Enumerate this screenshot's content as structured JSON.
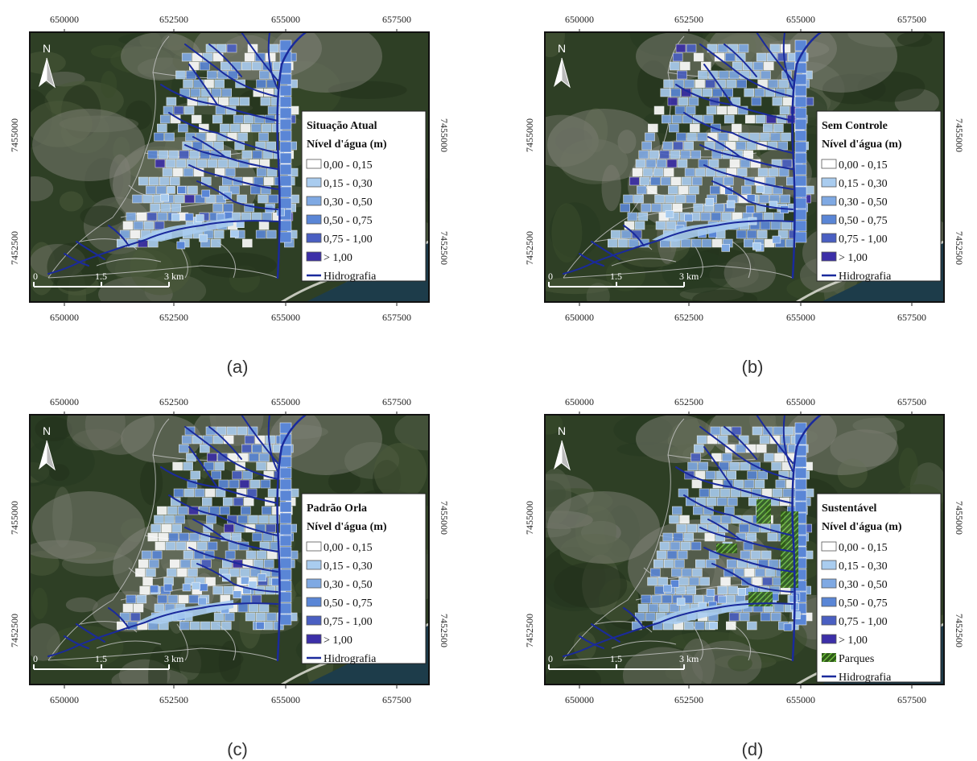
{
  "x_ticks": [
    "650000",
    "652500",
    "655000",
    "657500"
  ],
  "y_ticks": [
    "7455000",
    "7452500"
  ],
  "north_label": "N",
  "scale": {
    "labels": [
      "0",
      "1.5",
      "3 km"
    ]
  },
  "legend_subtitle": "Nível d'água (m)",
  "classes": [
    {
      "label": "0,00 - 0,15",
      "color": "#ffffff"
    },
    {
      "label": "0,15 - 0,30",
      "color": "#a9ccef"
    },
    {
      "label": "0,30 - 0,50",
      "color": "#7fa9e3"
    },
    {
      "label": "0,50 - 0,75",
      "color": "#5a86d6"
    },
    {
      "label": "0,75 - 1,00",
      "color": "#4a5fc2"
    },
    {
      "label": "> 1,00",
      "color": "#3c2fa8"
    }
  ],
  "hydro_label": "Hidrografia",
  "parks_label": "Parques",
  "colors": {
    "hydro": "#1a2a9c",
    "parks": "#6dbb3c",
    "frame": "#111111",
    "sea": "#1d3c4a"
  },
  "panels": [
    {
      "caption": "(a)",
      "scenario": "Situação Atual",
      "parks": false
    },
    {
      "caption": "(b)",
      "scenario": "Sem Controle",
      "parks": false
    },
    {
      "caption": "(c)",
      "scenario": "Padrão Orla",
      "parks": false
    },
    {
      "caption": "(d)",
      "scenario": "Sustentável",
      "parks": true
    }
  ]
}
